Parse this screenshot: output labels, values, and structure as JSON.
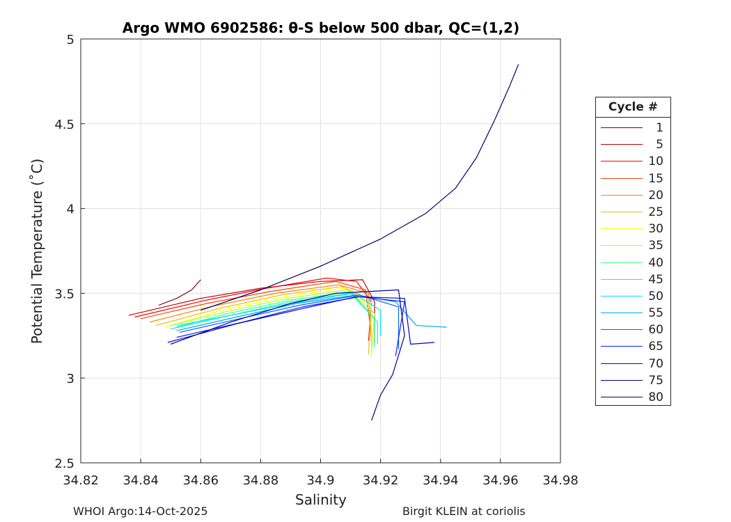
{
  "chart_data": {
    "type": "line",
    "title": "Argo WMO 6902586: θ-S below 500 dbar,  QC=(1,2)",
    "xlabel": "Salinity",
    "ylabel": "Potential Temperature (˚C)",
    "xlim": [
      34.82,
      34.98
    ],
    "ylim": [
      2.5,
      5
    ],
    "xticks": [
      "34.82",
      "34.84",
      "34.86",
      "34.88",
      "34.9",
      "34.92",
      "34.94",
      "34.96",
      "34.98"
    ],
    "yticks": [
      "2.5",
      "3",
      "3.5",
      "4",
      "4.5",
      "5"
    ],
    "grid": true,
    "legend": {
      "title": "Cycle #",
      "placement": "right",
      "entries": [
        {
          "label": "1",
          "color": "#800000"
        },
        {
          "label": "5",
          "color": "#c00000"
        },
        {
          "label": "10",
          "color": "#ff0000"
        },
        {
          "label": "15",
          "color": "#ff4000"
        },
        {
          "label": "20",
          "color": "#ff8000"
        },
        {
          "label": "25",
          "color": "#e6c000"
        },
        {
          "label": "30",
          "color": "#ffff00"
        },
        {
          "label": "35",
          "color": "#a0ff40"
        },
        {
          "label": "40",
          "color": "#40ff80"
        },
        {
          "label": "45",
          "color": "#00ffc0"
        },
        {
          "label": "50",
          "color": "#00e0ff"
        },
        {
          "label": "55",
          "color": "#00a0ff"
        },
        {
          "label": "60",
          "color": "#0060ff"
        },
        {
          "label": "65",
          "color": "#0020ff"
        },
        {
          "label": "70",
          "color": "#0000d0"
        },
        {
          "label": "75",
          "color": "#000090"
        },
        {
          "label": "80",
          "color": "#000060"
        }
      ]
    },
    "series": [
      {
        "name": "1",
        "color": "#800000",
        "points": [
          [
            34.846,
            3.43
          ],
          [
            34.852,
            3.47
          ],
          [
            34.857,
            3.52
          ],
          [
            34.86,
            3.58
          ]
        ]
      },
      {
        "name": "5",
        "color": "#c00000",
        "points": [
          [
            34.836,
            3.37
          ],
          [
            34.86,
            3.47
          ],
          [
            34.88,
            3.53
          ],
          [
            34.9,
            3.57
          ],
          [
            34.914,
            3.58
          ],
          [
            34.918,
            3.45
          ],
          [
            34.918,
            3.2
          ]
        ]
      },
      {
        "name": "10",
        "color": "#ff0000",
        "points": [
          [
            34.838,
            3.36
          ],
          [
            34.862,
            3.46
          ],
          [
            34.882,
            3.53
          ],
          [
            34.902,
            3.59
          ],
          [
            34.912,
            3.57
          ],
          [
            34.917,
            3.45
          ],
          [
            34.916,
            3.22
          ]
        ]
      },
      {
        "name": "15",
        "color": "#ff4000",
        "points": [
          [
            34.84,
            3.35
          ],
          [
            34.862,
            3.44
          ],
          [
            34.883,
            3.51
          ],
          [
            34.905,
            3.57
          ],
          [
            34.915,
            3.52
          ],
          [
            34.917,
            3.25
          ]
        ]
      },
      {
        "name": "20",
        "color": "#ff8000",
        "points": [
          [
            34.843,
            3.33
          ],
          [
            34.863,
            3.42
          ],
          [
            34.885,
            3.5
          ],
          [
            34.906,
            3.55
          ],
          [
            34.916,
            3.5
          ],
          [
            34.917,
            3.2
          ]
        ]
      },
      {
        "name": "25",
        "color": "#e6c000",
        "points": [
          [
            34.845,
            3.31
          ],
          [
            34.866,
            3.41
          ],
          [
            34.887,
            3.49
          ],
          [
            34.907,
            3.54
          ],
          [
            34.917,
            3.46
          ],
          [
            34.916,
            3.14
          ]
        ]
      },
      {
        "name": "30",
        "color": "#ffff00",
        "points": [
          [
            34.848,
            3.3
          ],
          [
            34.867,
            3.4
          ],
          [
            34.888,
            3.48
          ],
          [
            34.908,
            3.53
          ],
          [
            34.917,
            3.42
          ],
          [
            34.917,
            3.12
          ]
        ]
      },
      {
        "name": "35",
        "color": "#a0ff40",
        "points": [
          [
            34.85,
            3.31
          ],
          [
            34.868,
            3.39
          ],
          [
            34.889,
            3.47
          ],
          [
            34.909,
            3.52
          ],
          [
            34.918,
            3.38
          ],
          [
            34.917,
            3.15
          ]
        ]
      },
      {
        "name": "40",
        "color": "#40ff80",
        "points": [
          [
            34.852,
            3.3
          ],
          [
            34.869,
            3.38
          ],
          [
            34.89,
            3.46
          ],
          [
            34.91,
            3.51
          ],
          [
            34.918,
            3.35
          ],
          [
            34.918,
            3.18
          ]
        ]
      },
      {
        "name": "45",
        "color": "#00ffc0",
        "points": [
          [
            34.852,
            3.31
          ],
          [
            34.87,
            3.37
          ],
          [
            34.89,
            3.45
          ],
          [
            34.91,
            3.5
          ],
          [
            34.919,
            3.33
          ],
          [
            34.919,
            3.2
          ]
        ]
      },
      {
        "name": "50",
        "color": "#00e0ff",
        "points": [
          [
            34.85,
            3.29
          ],
          [
            34.87,
            3.37
          ],
          [
            34.89,
            3.44
          ],
          [
            34.911,
            3.5
          ],
          [
            34.92,
            3.4
          ],
          [
            34.92,
            3.25
          ]
        ]
      },
      {
        "name": "55",
        "color": "#00a0ff",
        "points": [
          [
            34.852,
            3.28
          ],
          [
            34.872,
            3.36
          ],
          [
            34.892,
            3.44
          ],
          [
            34.912,
            3.49
          ],
          [
            34.925,
            3.45
          ],
          [
            34.932,
            3.31
          ],
          [
            34.942,
            3.3
          ]
        ]
      },
      {
        "name": "60",
        "color": "#0060ff",
        "points": [
          [
            34.853,
            3.27
          ],
          [
            34.873,
            3.35
          ],
          [
            34.893,
            3.43
          ],
          [
            34.913,
            3.49
          ],
          [
            34.926,
            3.42
          ],
          [
            34.926,
            3.17
          ]
        ]
      },
      {
        "name": "65",
        "color": "#0020ff",
        "points": [
          [
            34.852,
            3.24
          ],
          [
            34.874,
            3.33
          ],
          [
            34.894,
            3.42
          ],
          [
            34.913,
            3.48
          ],
          [
            34.928,
            3.45
          ],
          [
            34.925,
            3.13
          ]
        ]
      },
      {
        "name": "70",
        "color": "#0000d0",
        "points": [
          [
            34.849,
            3.21
          ],
          [
            34.872,
            3.32
          ],
          [
            34.894,
            3.41
          ],
          [
            34.912,
            3.48
          ],
          [
            34.928,
            3.47
          ],
          [
            34.93,
            3.2
          ],
          [
            34.938,
            3.21
          ]
        ]
      },
      {
        "name": "75",
        "color": "#000090",
        "points": [
          [
            34.85,
            3.2
          ],
          [
            34.87,
            3.33
          ],
          [
            34.89,
            3.44
          ],
          [
            34.905,
            3.5
          ],
          [
            34.926,
            3.52
          ],
          [
            34.928,
            3.25
          ],
          [
            34.924,
            3.02
          ],
          [
            34.92,
            2.9
          ],
          [
            34.917,
            2.75
          ]
        ]
      },
      {
        "name": "80",
        "color": "#000060",
        "points": [
          [
            34.86,
            3.4
          ],
          [
            34.88,
            3.52
          ],
          [
            34.9,
            3.66
          ],
          [
            34.92,
            3.82
          ],
          [
            34.935,
            3.97
          ],
          [
            34.945,
            4.12
          ],
          [
            34.952,
            4.3
          ],
          [
            34.958,
            4.52
          ],
          [
            34.963,
            4.72
          ],
          [
            34.966,
            4.85
          ]
        ]
      }
    ]
  },
  "footer": {
    "left": "WHOI Argo:14-Oct-2025",
    "right": "Birgit KLEIN at coriolis"
  }
}
